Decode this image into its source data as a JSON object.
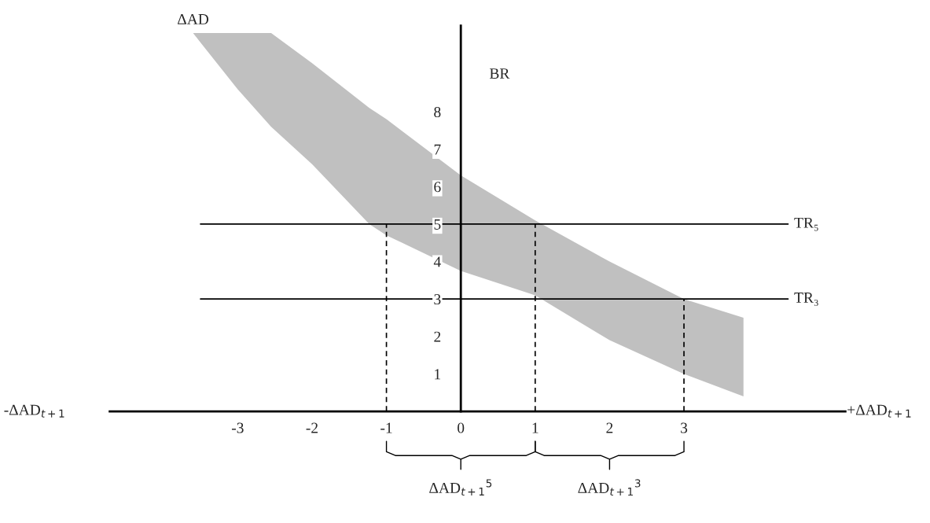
{
  "chart_data": {
    "type": "line",
    "ylabel": "BR",
    "xlabel": "+ΔAD$_{t+1}$",
    "xlim": [
      -4.72,
      5.17
    ],
    "ylim": [
      0,
      10.3
    ],
    "xticks": [
      -3,
      -2,
      -1,
      0,
      1,
      2,
      3
    ],
    "yticks": [
      1,
      2,
      3,
      4,
      5,
      6,
      7,
      8
    ],
    "grid": false,
    "legend": false,
    "series": [
      {
        "color": "#c0c0c0",
        "x": [
          -3.6,
          -3,
          -2.55,
          -2,
          -1.23,
          -1,
          0,
          1,
          2,
          3,
          3.8
        ],
        "values": [
          null,
          null,
          null,
          null,
          null,
          null,
          null,
          null,
          null,
          null,
          null
        ],
        "lower": [
          10.1,
          8.6,
          7.6,
          6.6,
          5.0,
          4.7,
          3.75,
          3.1,
          1.9,
          1.0,
          0.4
        ],
        "upper": [
          10.1,
          10.1,
          10.1,
          9.3,
          8.1,
          7.8,
          6.3,
          5.1,
          4.0,
          3.0,
          2.5
        ]
      },
      {
        "type": "line",
        "name": "TR₅",
        "color": "#000000",
        "line_style": "solid",
        "x": [
          -3.5,
          4.4
        ],
        "values": [
          5,
          5
        ]
      },
      {
        "type": "line",
        "name": "TR₃",
        "color": "#000000",
        "line_style": "solid",
        "x": [
          -3.5,
          4.4
        ],
        "values": [
          3,
          3
        ]
      },
      {
        "type": "line",
        "color": "#000000",
        "line_style": "dashed",
        "x": [
          -1,
          -1
        ],
        "values": [
          0,
          5
        ]
      },
      {
        "type": "line",
        "color": "#000000",
        "line_style": "dashed",
        "x": [
          1,
          1
        ],
        "values": [
          0,
          5
        ]
      },
      {
        "type": "line",
        "color": "#000000",
        "line_style": "dashed",
        "x": [
          3,
          3
        ],
        "values": [
          0,
          3
        ]
      }
    ],
    "annotations": [
      "ΔAD",
      "-ΔAD$_{t+1}$",
      "ΔAD$_{t+1}$$^{5}$",
      "ΔAD$_{t+1}$$^{3}$"
    ]
  }
}
